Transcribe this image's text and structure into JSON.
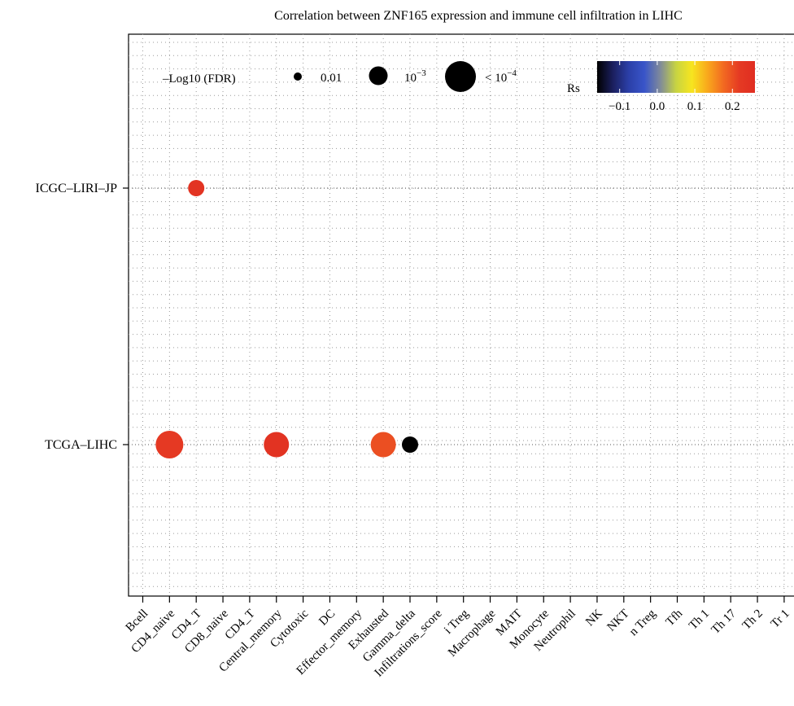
{
  "chart_data": {
    "type": "scatter",
    "title": "Correlation between ZNF165 expression and immune cell infiltration in LIHC",
    "xlabel": "",
    "ylabel": "",
    "x_categories": [
      "Bcell",
      "CD4_naive",
      "CD4_T",
      "CD8_naive",
      "CD4_T",
      "Central_memory",
      "Cytotoxic",
      "DC",
      "Effector_memory",
      "Exhausted",
      "Gamma_delta",
      "Infiltrations_score",
      "i Treg",
      "Macrophage",
      "MAIT",
      "Monocyte",
      "Neutrophil",
      "NK",
      "NKT",
      "n Treg",
      "Tfh",
      "Th 1",
      "Th 17",
      "Th 2",
      "Tr 1"
    ],
    "y_categories": [
      "ICGC–LIRI–JP",
      "TCGA–LIHC"
    ],
    "points": [
      {
        "x_index": 2,
        "y_index": 0,
        "rs": 0.24,
        "fdr_level": "0.01"
      },
      {
        "x_index": 1,
        "y_index": 1,
        "rs": 0.22,
        "fdr_level": "< 10^-4"
      },
      {
        "x_index": 5,
        "y_index": 1,
        "rs": 0.24,
        "fdr_level": "10^-3"
      },
      {
        "x_index": 9,
        "y_index": 1,
        "rs": 0.2,
        "fdr_level": "10^-3"
      },
      {
        "x_index": 10,
        "y_index": 1,
        "rs": -0.16,
        "fdr_level": "0.01"
      }
    ],
    "size_legend": {
      "title": "–Log10 (FDR)",
      "entries": [
        {
          "label": "0.01"
        },
        {
          "label_base": "10",
          "label_exp": "−3"
        },
        {
          "label_prefix": "< 10",
          "label_exp": "−4"
        }
      ]
    },
    "color_legend": {
      "title": "Rs",
      "range": [
        -0.16,
        0.26
      ],
      "ticks": [
        {
          "value": -0.1,
          "label": "−0.1"
        },
        {
          "value": 0.0,
          "label": "0.0"
        },
        {
          "value": 0.1,
          "label": "0.1"
        },
        {
          "value": 0.2,
          "label": "0.2"
        }
      ],
      "colors": [
        "#000000",
        "#1b1f5e",
        "#2b3fa8",
        "#3955c9",
        "#7f8a9a",
        "#c7d442",
        "#f7e51f",
        "#f9a81c",
        "#f26a21",
        "#e53a23",
        "#e02d22"
      ]
    },
    "grid": true
  }
}
